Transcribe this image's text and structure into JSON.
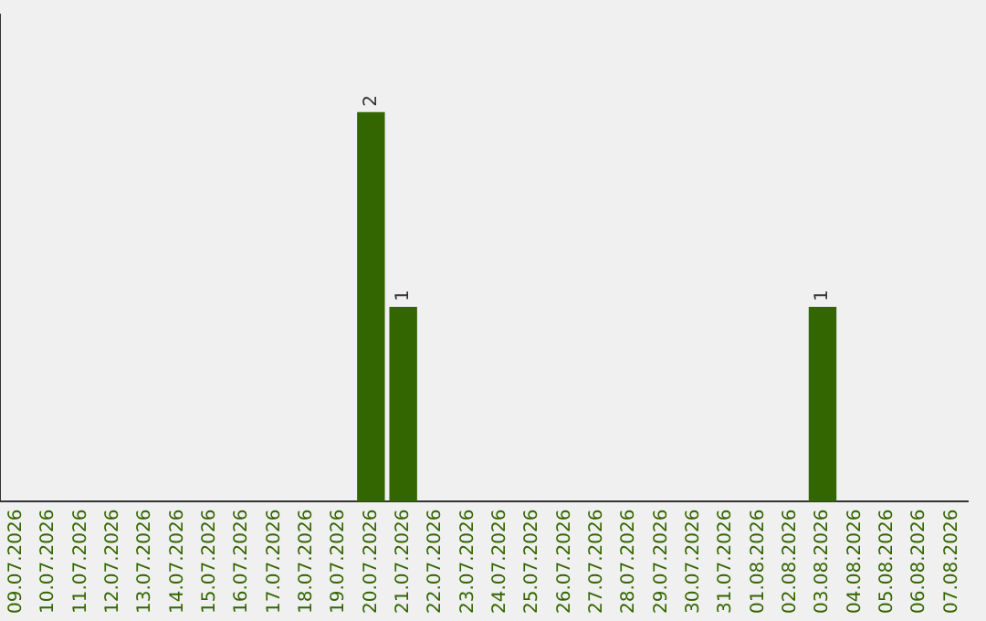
{
  "chart_data": {
    "type": "bar",
    "categories": [
      "09.07.2026",
      "10.07.2026",
      "11.07.2026",
      "12.07.2026",
      "13.07.2026",
      "14.07.2026",
      "15.07.2026",
      "16.07.2026",
      "17.07.2026",
      "18.07.2026",
      "19.07.2026",
      "20.07.2026",
      "21.07.2026",
      "22.07.2026",
      "23.07.2026",
      "24.07.2026",
      "25.07.2026",
      "26.07.2026",
      "27.07.2026",
      "28.07.2026",
      "29.07.2026",
      "30.07.2026",
      "31.07.2026",
      "01.08.2026",
      "02.08.2026",
      "03.08.2026",
      "04.08.2026",
      "05.08.2026",
      "06.08.2026",
      "07.08.2026"
    ],
    "values": [
      0,
      0,
      0,
      0,
      0,
      0,
      0,
      0,
      0,
      0,
      0,
      2,
      1,
      0,
      0,
      0,
      0,
      0,
      0,
      0,
      0,
      0,
      0,
      0,
      0,
      1,
      0,
      0,
      0,
      0
    ],
    "value_labels": [
      null,
      null,
      null,
      null,
      null,
      null,
      null,
      null,
      null,
      null,
      null,
      "2",
      "1",
      null,
      null,
      null,
      null,
      null,
      null,
      null,
      null,
      null,
      null,
      null,
      null,
      "1",
      null,
      null,
      null,
      null
    ],
    "color": "#336600",
    "grid": false,
    "legend": false,
    "tick_labels": "x"
  }
}
